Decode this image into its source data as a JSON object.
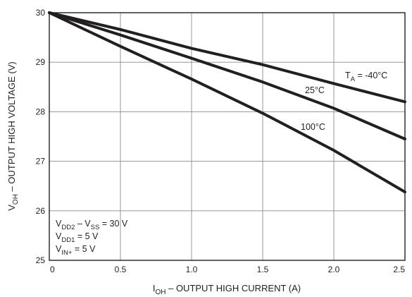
{
  "chart_data": {
    "type": "line",
    "xlabel": {
      "main": "I",
      "sub": "OH",
      "rest": " – OUTPUT HIGH CURRENT (A)"
    },
    "ylabel": {
      "main": "V",
      "sub": "OH",
      "rest": " – OUTPUT HIGH VOLTAGE (V)"
    },
    "xlim": [
      0,
      2.5
    ],
    "ylim": [
      25,
      30
    ],
    "xticks": [
      "0",
      "0.5",
      "1.0",
      "1.5",
      "2.0",
      "2.5"
    ],
    "yticks": [
      "25",
      "26",
      "27",
      "28",
      "29",
      "30"
    ],
    "grid": true,
    "series": [
      {
        "name": "T_A = -40°C",
        "x": [
          0,
          0.5,
          1.0,
          1.5,
          2.0,
          2.5
        ],
        "y": [
          30.0,
          29.66,
          29.28,
          28.95,
          28.57,
          28.2
        ]
      },
      {
        "name": "25°C",
        "x": [
          0,
          0.5,
          1.0,
          1.5,
          2.0,
          2.5
        ],
        "y": [
          30.0,
          29.55,
          29.08,
          28.6,
          28.07,
          27.45
        ]
      },
      {
        "name": "100°C",
        "x": [
          0,
          0.5,
          1.0,
          1.5,
          2.0,
          2.5
        ],
        "y": [
          30.0,
          29.32,
          28.66,
          27.97,
          27.22,
          26.38
        ]
      }
    ],
    "series_labels": [
      {
        "main": "T",
        "sub": "A",
        "rest": " = -40°C"
      },
      {
        "main": "25°C",
        "sub": "",
        "rest": ""
      },
      {
        "main": "100°C",
        "sub": "",
        "rest": ""
      }
    ],
    "annotations": [
      {
        "p1": "V",
        "s1": "DD2",
        "p2": " – V",
        "s2": "SS",
        "p3": " = 30 V"
      },
      {
        "p1": "V",
        "s1": "DD1",
        "p2": " = 5 V",
        "s2": "",
        "p3": ""
      },
      {
        "p1": "V",
        "s1": "IN+",
        "p2": " = 5 V",
        "s2": "",
        "p3": ""
      }
    ]
  }
}
